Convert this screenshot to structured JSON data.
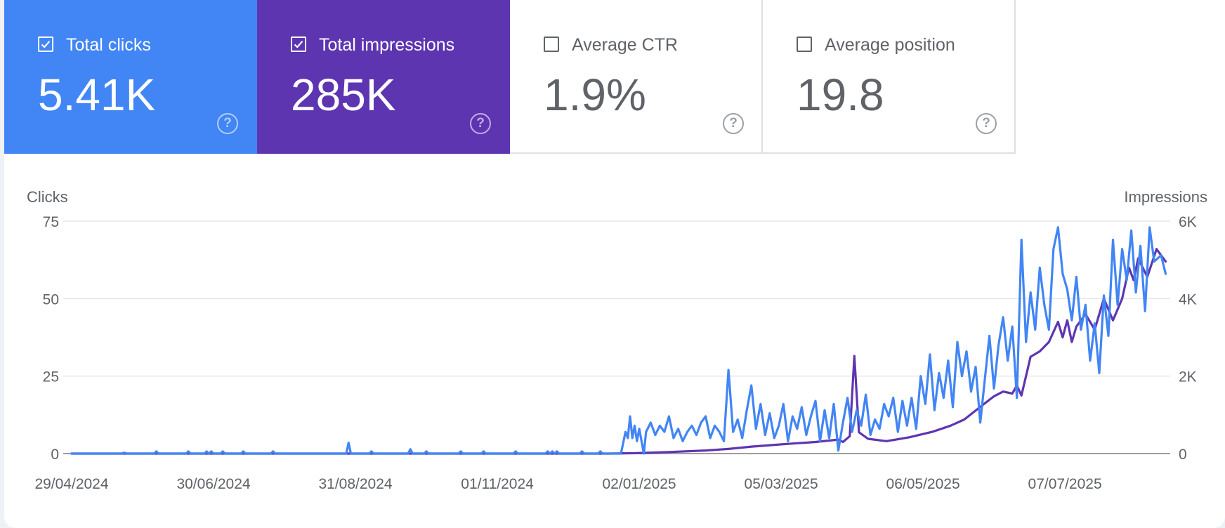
{
  "tiles": [
    {
      "label": "Total clicks",
      "value": "5.41K",
      "checked": true,
      "color": "#4285f4"
    },
    {
      "label": "Total impressions",
      "value": "285K",
      "checked": true,
      "color": "#5e35b1"
    },
    {
      "label": "Average CTR",
      "value": "1.9%",
      "checked": false,
      "color": "#ffffff"
    },
    {
      "label": "Average position",
      "value": "19.8",
      "checked": false,
      "color": "#ffffff"
    }
  ],
  "help_glyph": "?",
  "chart_data": {
    "type": "line",
    "left_axis_label": "Clicks",
    "right_axis_label": "Impressions",
    "y_left_ticks": [
      "0",
      "25",
      "50",
      "75"
    ],
    "y_left_range": [
      0,
      75
    ],
    "y_right_ticks": [
      "0",
      "2K",
      "4K",
      "6K"
    ],
    "y_right_range": [
      0,
      6000
    ],
    "x_start": "2024-04-29",
    "x_end": "2025-08-22",
    "x_ticks": [
      "29/04/2024",
      "30/06/2024",
      "31/08/2024",
      "01/11/2024",
      "02/01/2025",
      "05/03/2025",
      "06/05/2025",
      "07/07/2025"
    ],
    "grid": true,
    "series": [
      {
        "name": "Total clicks",
        "axis": "left",
        "color": "#4285f4",
        "points": [
          [
            "2024-04-29",
            0
          ],
          [
            "2024-05-21",
            0
          ],
          [
            "2024-05-22",
            0.3
          ],
          [
            "2024-05-23",
            0
          ],
          [
            "2024-06-04",
            0
          ],
          [
            "2024-06-05",
            0.7
          ],
          [
            "2024-06-06",
            0
          ],
          [
            "2024-06-18",
            0
          ],
          [
            "2024-06-19",
            0.7
          ],
          [
            "2024-06-20",
            0
          ],
          [
            "2024-06-26",
            0
          ],
          [
            "2024-06-27",
            0.7
          ],
          [
            "2024-06-28",
            0
          ],
          [
            "2024-06-29",
            0.7
          ],
          [
            "2024-06-30",
            0
          ],
          [
            "2024-07-03",
            0
          ],
          [
            "2024-07-04",
            0.7
          ],
          [
            "2024-07-05",
            0
          ],
          [
            "2024-07-12",
            0
          ],
          [
            "2024-07-13",
            0.7
          ],
          [
            "2024-07-14",
            0
          ],
          [
            "2024-07-25",
            0
          ],
          [
            "2024-07-26",
            0.7
          ],
          [
            "2024-07-27",
            0
          ],
          [
            "2024-08-27",
            0
          ],
          [
            "2024-08-28",
            3.5
          ],
          [
            "2024-08-29",
            0
          ],
          [
            "2024-09-06",
            0
          ],
          [
            "2024-09-07",
            0.7
          ],
          [
            "2024-09-08",
            0
          ],
          [
            "2024-09-23",
            0
          ],
          [
            "2024-09-24",
            1.4
          ],
          [
            "2024-09-25",
            0
          ],
          [
            "2024-09-30",
            0
          ],
          [
            "2024-10-01",
            0.7
          ],
          [
            "2024-10-02",
            0
          ],
          [
            "2024-10-15",
            0
          ],
          [
            "2024-10-16",
            0.7
          ],
          [
            "2024-10-17",
            0
          ],
          [
            "2024-10-25",
            0
          ],
          [
            "2024-10-26",
            0.7
          ],
          [
            "2024-10-27",
            0
          ],
          [
            "2024-11-08",
            0
          ],
          [
            "2024-11-09",
            0.7
          ],
          [
            "2024-11-10",
            0
          ],
          [
            "2024-11-22",
            0
          ],
          [
            "2024-11-23",
            0.7
          ],
          [
            "2024-11-24",
            0
          ],
          [
            "2024-11-25",
            0.7
          ],
          [
            "2024-11-26",
            0
          ],
          [
            "2024-11-27",
            0.7
          ],
          [
            "2024-11-28",
            0
          ],
          [
            "2024-12-07",
            0
          ],
          [
            "2024-12-08",
            0.7
          ],
          [
            "2024-12-09",
            0
          ],
          [
            "2024-12-15",
            0
          ],
          [
            "2024-12-16",
            0.7
          ],
          [
            "2024-12-17",
            0
          ],
          [
            "2024-12-25",
            0
          ],
          [
            "2024-12-26",
            3.5
          ],
          [
            "2024-12-27",
            7
          ],
          [
            "2024-12-28",
            5
          ],
          [
            "2024-12-29",
            12
          ],
          [
            "2024-12-30",
            5
          ],
          [
            "2024-12-31",
            9
          ],
          [
            "2025-01-01",
            4
          ],
          [
            "2025-01-02",
            8
          ],
          [
            "2025-01-04",
            0
          ],
          [
            "2025-01-05",
            7
          ],
          [
            "2025-01-07",
            10
          ],
          [
            "2025-01-09",
            6
          ],
          [
            "2025-01-11",
            9
          ],
          [
            "2025-01-13",
            7
          ],
          [
            "2025-01-15",
            12
          ],
          [
            "2025-01-17",
            5
          ],
          [
            "2025-01-19",
            8
          ],
          [
            "2025-01-21",
            4
          ],
          [
            "2025-01-23",
            7
          ],
          [
            "2025-01-25",
            9
          ],
          [
            "2025-01-27",
            6
          ],
          [
            "2025-01-29",
            10
          ],
          [
            "2025-01-31",
            12
          ],
          [
            "2025-02-02",
            5
          ],
          [
            "2025-02-04",
            9
          ],
          [
            "2025-02-06",
            7
          ],
          [
            "2025-02-08",
            4
          ],
          [
            "2025-02-10",
            27
          ],
          [
            "2025-02-12",
            7
          ],
          [
            "2025-02-14",
            11
          ],
          [
            "2025-02-16",
            5
          ],
          [
            "2025-02-18",
            14
          ],
          [
            "2025-02-20",
            22
          ],
          [
            "2025-02-22",
            8
          ],
          [
            "2025-02-24",
            16
          ],
          [
            "2025-02-26",
            6
          ],
          [
            "2025-02-28",
            13
          ],
          [
            "2025-03-02",
            5
          ],
          [
            "2025-03-04",
            9
          ],
          [
            "2025-03-06",
            16
          ],
          [
            "2025-03-08",
            4
          ],
          [
            "2025-03-10",
            12
          ],
          [
            "2025-03-12",
            8
          ],
          [
            "2025-03-14",
            15
          ],
          [
            "2025-03-16",
            6
          ],
          [
            "2025-03-18",
            12
          ],
          [
            "2025-03-20",
            17
          ],
          [
            "2025-03-22",
            4
          ],
          [
            "2025-03-24",
            14
          ],
          [
            "2025-03-26",
            5
          ],
          [
            "2025-03-28",
            16
          ],
          [
            "2025-03-30",
            1
          ],
          [
            "2025-04-01",
            10
          ],
          [
            "2025-04-03",
            18
          ],
          [
            "2025-04-05",
            7
          ],
          [
            "2025-04-07",
            14
          ],
          [
            "2025-04-09",
            9
          ],
          [
            "2025-04-11",
            19
          ],
          [
            "2025-04-13",
            6
          ],
          [
            "2025-04-15",
            11
          ],
          [
            "2025-04-17",
            8
          ],
          [
            "2025-04-19",
            16
          ],
          [
            "2025-04-21",
            12
          ],
          [
            "2025-04-23",
            18
          ],
          [
            "2025-04-25",
            7
          ],
          [
            "2025-04-27",
            17
          ],
          [
            "2025-04-29",
            9
          ],
          [
            "2025-05-01",
            18
          ],
          [
            "2025-05-03",
            8
          ],
          [
            "2025-05-05",
            25
          ],
          [
            "2025-05-07",
            16
          ],
          [
            "2025-05-09",
            32
          ],
          [
            "2025-05-11",
            14
          ],
          [
            "2025-05-13",
            26
          ],
          [
            "2025-05-15",
            18
          ],
          [
            "2025-05-17",
            30
          ],
          [
            "2025-05-19",
            15
          ],
          [
            "2025-05-21",
            36
          ],
          [
            "2025-05-23",
            25
          ],
          [
            "2025-05-25",
            33
          ],
          [
            "2025-05-27",
            20
          ],
          [
            "2025-05-29",
            28
          ],
          [
            "2025-05-31",
            10
          ],
          [
            "2025-06-02",
            24
          ],
          [
            "2025-06-04",
            38
          ],
          [
            "2025-06-06",
            21
          ],
          [
            "2025-06-08",
            35
          ],
          [
            "2025-06-10",
            44
          ],
          [
            "2025-06-12",
            30
          ],
          [
            "2025-06-14",
            41
          ],
          [
            "2025-06-16",
            18
          ],
          [
            "2025-06-18",
            69
          ],
          [
            "2025-06-20",
            36
          ],
          [
            "2025-06-22",
            52
          ],
          [
            "2025-06-24",
            40
          ],
          [
            "2025-06-26",
            60
          ],
          [
            "2025-06-28",
            48
          ],
          [
            "2025-06-30",
            40
          ],
          [
            "2025-07-02",
            66
          ],
          [
            "2025-07-04",
            73
          ],
          [
            "2025-07-06",
            58
          ],
          [
            "2025-07-08",
            53
          ],
          [
            "2025-07-10",
            43
          ],
          [
            "2025-07-12",
            57
          ],
          [
            "2025-07-14",
            40
          ],
          [
            "2025-07-16",
            48
          ],
          [
            "2025-07-18",
            30
          ],
          [
            "2025-07-20",
            42
          ],
          [
            "2025-07-22",
            26
          ],
          [
            "2025-07-24",
            51
          ],
          [
            "2025-07-26",
            38
          ],
          [
            "2025-07-28",
            69
          ],
          [
            "2025-07-30",
            48
          ],
          [
            "2025-08-01",
            66
          ],
          [
            "2025-08-03",
            56
          ],
          [
            "2025-08-05",
            72
          ],
          [
            "2025-08-07",
            52
          ],
          [
            "2025-08-09",
            67
          ],
          [
            "2025-08-11",
            46
          ],
          [
            "2025-08-13",
            73
          ],
          [
            "2025-08-15",
            62
          ],
          [
            "2025-08-18",
            64
          ],
          [
            "2025-08-20",
            58
          ]
        ]
      },
      {
        "name": "Total impressions",
        "axis": "right",
        "color": "#5e35b1",
        "points": [
          [
            "2024-04-29",
            0
          ],
          [
            "2024-12-20",
            0
          ],
          [
            "2025-01-01",
            10
          ],
          [
            "2025-01-15",
            40
          ],
          [
            "2025-01-31",
            80
          ],
          [
            "2025-02-10",
            120
          ],
          [
            "2025-02-20",
            180
          ],
          [
            "2025-03-01",
            220
          ],
          [
            "2025-03-10",
            260
          ],
          [
            "2025-03-20",
            300
          ],
          [
            "2025-03-30",
            360
          ],
          [
            "2025-04-01",
            300
          ],
          [
            "2025-04-04",
            450
          ],
          [
            "2025-04-06",
            2520
          ],
          [
            "2025-04-08",
            550
          ],
          [
            "2025-04-12",
            380
          ],
          [
            "2025-04-20",
            320
          ],
          [
            "2025-04-30",
            420
          ],
          [
            "2025-05-10",
            560
          ],
          [
            "2025-05-18",
            720
          ],
          [
            "2025-05-24",
            880
          ],
          [
            "2025-06-01",
            1250
          ],
          [
            "2025-06-06",
            1480
          ],
          [
            "2025-06-10",
            1600
          ],
          [
            "2025-06-14",
            1550
          ],
          [
            "2025-06-16",
            1760
          ],
          [
            "2025-06-18",
            1500
          ],
          [
            "2025-06-22",
            2500
          ],
          [
            "2025-06-26",
            2640
          ],
          [
            "2025-06-30",
            2880
          ],
          [
            "2025-07-04",
            3400
          ],
          [
            "2025-07-06",
            3000
          ],
          [
            "2025-07-08",
            3440
          ],
          [
            "2025-07-10",
            2880
          ],
          [
            "2025-07-12",
            3280
          ],
          [
            "2025-07-16",
            3600
          ],
          [
            "2025-07-20",
            3200
          ],
          [
            "2025-07-24",
            4000
          ],
          [
            "2025-07-28",
            3440
          ],
          [
            "2025-08-01",
            4000
          ],
          [
            "2025-08-04",
            4800
          ],
          [
            "2025-08-06",
            4480
          ],
          [
            "2025-08-08",
            5040
          ],
          [
            "2025-08-12",
            4560
          ],
          [
            "2025-08-16",
            5280
          ],
          [
            "2025-08-20",
            4960
          ]
        ]
      }
    ]
  }
}
